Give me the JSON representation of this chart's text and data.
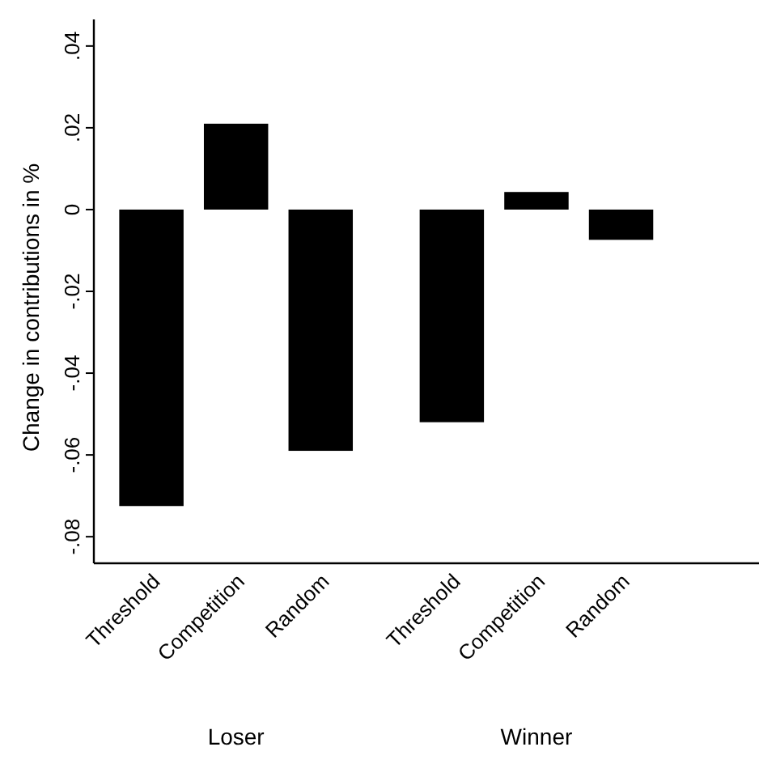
{
  "chart_data": {
    "type": "bar",
    "ylabel": "Change in contributions in %",
    "categories": [
      "Threshold",
      "Competition",
      "Random",
      "Threshold",
      "Competition",
      "Random"
    ],
    "values": [
      -0.0725,
      0.021,
      -0.059,
      -0.052,
      0.0043,
      -0.0074
    ],
    "color": "#000000",
    "ylim": [
      -0.0865,
      0.0465
    ],
    "yticks": [
      {
        "value": -0.08,
        "label": "-.08"
      },
      {
        "value": -0.06,
        "label": "-.06"
      },
      {
        "value": -0.04,
        "label": "-.04"
      },
      {
        "value": -0.02,
        "label": "-.02"
      },
      {
        "value": 0,
        "label": "0"
      },
      {
        "value": 0.02,
        "label": ".02"
      },
      {
        "value": 0.04,
        "label": ".04"
      }
    ],
    "annotations": [
      "Loser",
      "Winner"
    ]
  }
}
